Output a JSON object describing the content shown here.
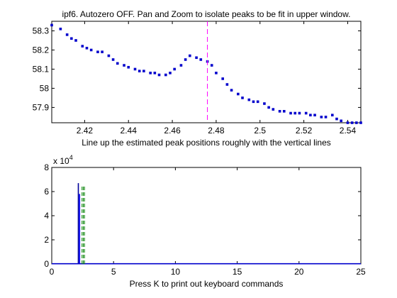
{
  "figure": {
    "title": "ipf6. Autozero OFF. Pan and Zoom to isolate peaks to be fit in upper window.",
    "bottom_label_top": "Line up the estimated peak positions roughly with the vertical lines",
    "bottom_label_bottom": "Press K to print out keyboard commands",
    "lower_exponent_base": "x 10",
    "lower_exponent_power": "4"
  },
  "chart_data": [
    {
      "type": "scatter",
      "id": "upper",
      "title": "ipf6. Autozero OFF. Pan and Zoom to isolate peaks to be fit in upper window.",
      "xlabel": "Line up the estimated peak positions roughly with the vertical lines",
      "ylabel": "",
      "xlim": [
        2.405,
        2.546
      ],
      "ylim": [
        57.82,
        58.35
      ],
      "xticks": [
        2.42,
        2.44,
        2.46,
        2.48,
        2.5,
        2.52,
        2.54
      ],
      "xtick_labels": [
        "2.42",
        "2.44",
        "2.46",
        "2.48",
        "2.5",
        "2.52",
        "2.54"
      ],
      "yticks": [
        57.9,
        58.0,
        58.1,
        58.2,
        58.3
      ],
      "ytick_labels": [
        "57.9",
        "58",
        "58.1",
        "58.2",
        "58.3"
      ],
      "marker_color": "#0000cc",
      "x": [
        2.405,
        2.409,
        2.412,
        2.414,
        2.416,
        2.419,
        2.421,
        2.423,
        2.426,
        2.428,
        2.431,
        2.433,
        2.435,
        2.438,
        2.44,
        2.443,
        2.445,
        2.447,
        2.45,
        2.452,
        2.454,
        2.457,
        2.459,
        2.461,
        2.464,
        2.466,
        2.468,
        2.471,
        2.473,
        2.476,
        2.478,
        2.48,
        2.483,
        2.485,
        2.487,
        2.49,
        2.492,
        2.495,
        2.497,
        2.499,
        2.502,
        2.504,
        2.506,
        2.509,
        2.511,
        2.514,
        2.516,
        2.518,
        2.521,
        2.523,
        2.525,
        2.528,
        2.53,
        2.533,
        2.535,
        2.537,
        2.54,
        2.542,
        2.544,
        2.546
      ],
      "y": [
        58.33,
        58.31,
        58.28,
        58.26,
        58.25,
        58.22,
        58.21,
        58.2,
        58.19,
        58.19,
        58.17,
        58.15,
        58.13,
        58.12,
        58.11,
        58.1,
        58.09,
        58.09,
        58.08,
        58.08,
        58.07,
        58.07,
        58.08,
        58.1,
        58.12,
        58.15,
        58.17,
        58.16,
        58.15,
        58.14,
        58.12,
        58.08,
        58.05,
        58.02,
        57.99,
        57.97,
        57.95,
        57.94,
        57.93,
        57.93,
        57.92,
        57.9,
        57.89,
        57.88,
        57.88,
        57.87,
        57.87,
        57.87,
        57.87,
        57.86,
        57.86,
        57.85,
        57.85,
        57.86,
        57.84,
        57.83,
        57.82,
        57.82,
        57.82,
        57.82
      ],
      "vlines": [
        {
          "x": 2.476,
          "color": "#ff00ff",
          "style": "dashed"
        }
      ]
    },
    {
      "type": "line",
      "id": "lower",
      "xlabel": "Press K to print out keyboard commands",
      "ylabel": "",
      "xlim": [
        0,
        25
      ],
      "ylim": [
        0,
        8
      ],
      "y_scale_label": "x 10^4",
      "xticks": [
        0,
        5,
        10,
        15,
        20,
        25
      ],
      "xtick_labels": [
        "0",
        "5",
        "10",
        "15",
        "20",
        "25"
      ],
      "yticks": [
        0,
        2,
        4,
        6,
        8
      ],
      "ytick_labels": [
        "0",
        "2",
        "4",
        "6",
        "8"
      ],
      "line_color": "#0000cc",
      "segments": [
        {
          "x": [
            2.15,
            2.15
          ],
          "y": [
            0,
            6.7
          ],
          "color": "#000099"
        },
        {
          "x": [
            2.25,
            2.25
          ],
          "y": [
            0,
            5.8
          ],
          "color": "#0000ff"
        },
        {
          "x": [
            0,
            25
          ],
          "y": [
            0.02,
            0.02
          ],
          "color": "#0000cc"
        }
      ],
      "vlines": [
        {
          "x": 2.45,
          "y": [
            0,
            6.5
          ],
          "color": "#008000",
          "style": "dashed"
        },
        {
          "x": 2.55,
          "y": [
            0,
            6.5
          ],
          "color": "#008000",
          "style": "dashed"
        },
        {
          "x": 2.65,
          "y": [
            0,
            6.5
          ],
          "color": "#008000",
          "style": "dashed"
        }
      ]
    }
  ]
}
